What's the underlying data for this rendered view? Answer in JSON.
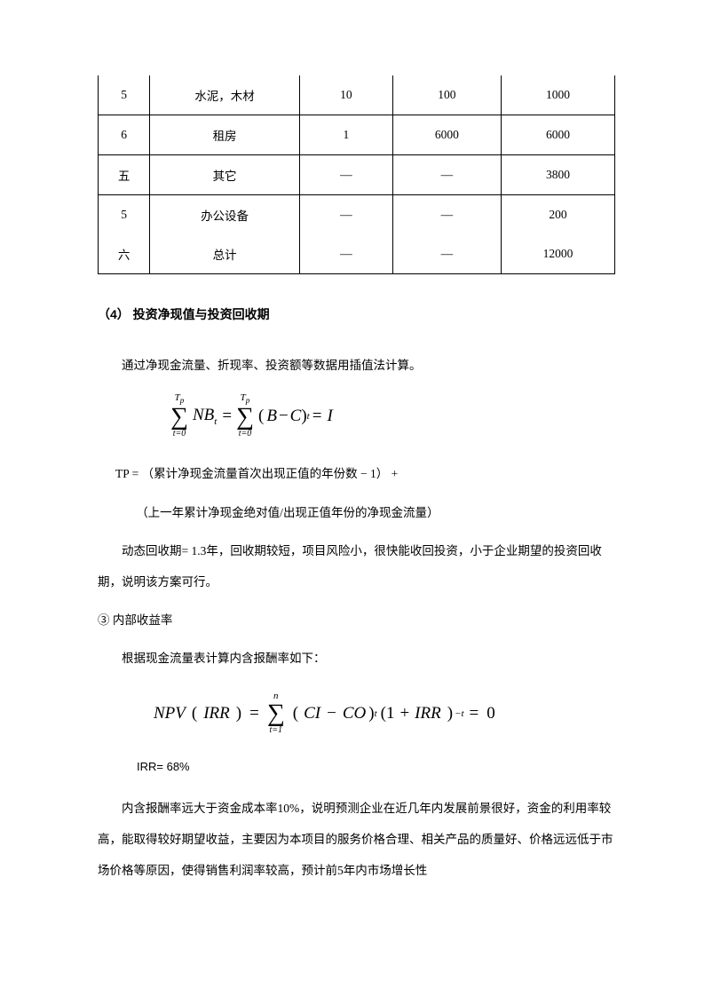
{
  "table": {
    "col_widths": [
      "10%",
      "29%",
      "18%",
      "21%",
      "22%"
    ],
    "rows": [
      {
        "cells": [
          "5",
          "水泥，木材",
          "10",
          "100",
          "1000"
        ],
        "sep": true
      },
      {
        "cells": [
          "6",
          "租房",
          "1",
          "6000",
          "6000"
        ],
        "sep": true
      },
      {
        "cells": [
          "五",
          "其它",
          "—",
          "—",
          "3800"
        ],
        "sep": true
      },
      {
        "cells": [
          "5",
          "办公设备",
          "—",
          "—",
          "200"
        ],
        "sep": false
      },
      {
        "cells": [
          "六",
          "总计",
          "—",
          "—",
          "12000"
        ],
        "sep": true
      }
    ]
  },
  "heading4": "（4） 投资净现值与投资回收期",
  "para_intro": "通过净现金流量、折现率、投资额等数据用插值法计算。",
  "formula1": {
    "sum_top": "T",
    "sum_top_sub": "p",
    "sum_bot": "t=0",
    "term1": "NB",
    "term1_sub": "t",
    "eq": "=",
    "term2_lparen": "(",
    "term2_b": "B",
    "term2_minus": "−",
    "term2_c": "C",
    "term2_rparen": ")",
    "term2_sub": "t",
    "term3": "I"
  },
  "tp_line1": "TP = （累计净现金流量首次出现正值的年份数 − 1） +",
  "tp_line2": "（上一年累计净现金绝对值/出现正值年份的净现金流量）",
  "dynamic_para": "动态回收期= 1.3年，回收期较短，项目风险小，很快能收回投资，小于企业期望的投资回收期，说明该方案可行。",
  "point3_title": "③ 内部收益率",
  "point3_intro": "根据现金流量表计算内含报酬率如下：",
  "formula2": {
    "npv": "NPV",
    "lparen": "（",
    "irr": "IRR",
    "rparen": "）",
    "eq1": "=",
    "sum_top": "n",
    "sum_bot": "t=1",
    "lparen2": "(",
    "ci": "CI",
    "minus": "−",
    "co": "CO",
    "rparen2": ")",
    "sub_t": "t",
    "lparen3": "(1 +",
    "irr2": "IRR",
    "rparen3": ")",
    "sup": "−t",
    "eq2": "=",
    "zero": "0"
  },
  "irr_value": "IRR= 68%",
  "conclusion": "内含报酬率远大于资金成本率10%，说明预测企业在近几年内发展前景很好，资金的利用率较高，能取得较好期望收益，主要因为本项目的服务价格合理、相关产品的质量好、价格远远低于市场价格等原因，使得销售利润率较高，预计前5年内市场增长性"
}
